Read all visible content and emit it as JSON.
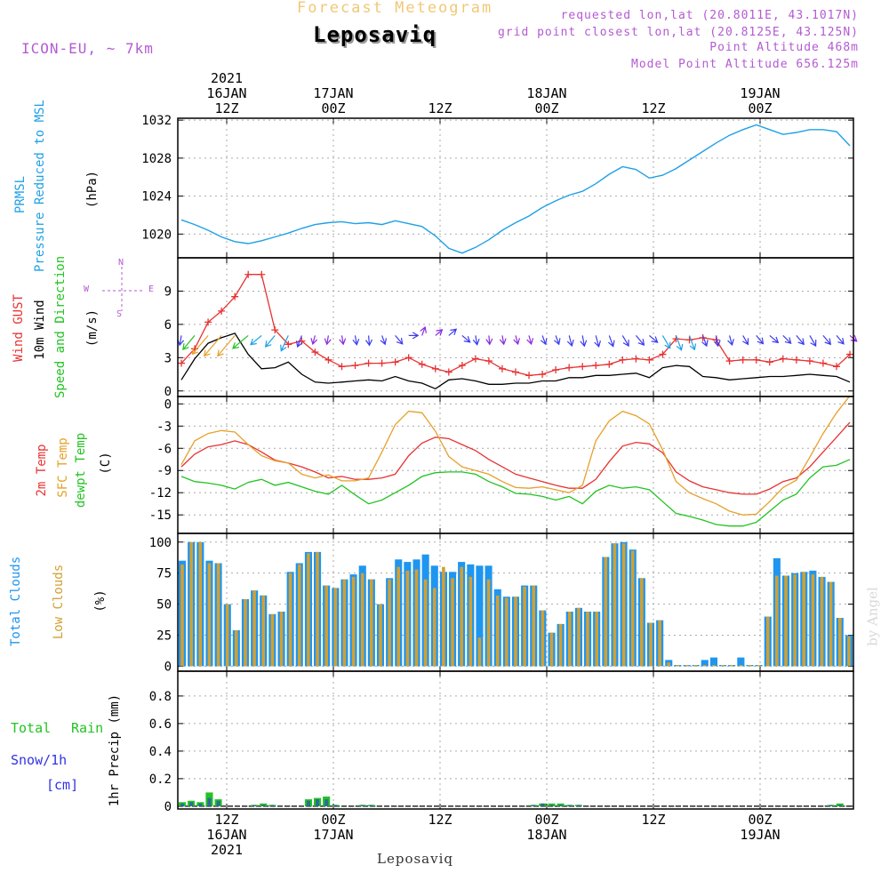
{
  "header": {
    "forecast_title": "Forecast Meteogram",
    "location": "Leposaviq",
    "model": "ICON-EU, ~ 7km",
    "requested": "requested lon,lat (20.8011E, 43.1017N)",
    "grid_point": "grid point closest lon,lat (20.8125E, 43.125N)",
    "point_altitude": "Point Altitude 468m",
    "model_altitude": "Model Point Altitude 656.125m",
    "credit": "by Angel",
    "footer_location": "Leposaviq"
  },
  "colors": {
    "pressure": "#1ea0e6",
    "gust": "#e83232",
    "wind": "#000000",
    "wind_green": "#22c322",
    "t2m": "#e83232",
    "tsfc": "#e6a02a",
    "dewpt": "#22c322",
    "total_cloud": "#1e96f0",
    "low_cloud": "#d2a032",
    "rain": "#22c322",
    "snow": "#3232e6",
    "header_violet": "#b45ad2",
    "title_tan": "#f0c878"
  },
  "chart_data": {
    "type": "meteogram",
    "time_axis": {
      "start": "2021-01-16 05Z",
      "step_hours": 1,
      "top_labels": [
        {
          "hour": 7,
          "lines": [
            "2021",
            "16JAN",
            "12Z"
          ]
        },
        {
          "hour": 19,
          "lines": [
            "17JAN",
            "00Z"
          ]
        },
        {
          "hour": 31,
          "lines": [
            "12Z"
          ]
        },
        {
          "hour": 43,
          "lines": [
            "18JAN",
            "00Z"
          ]
        },
        {
          "hour": 55,
          "lines": [
            "12Z"
          ]
        },
        {
          "hour": 67,
          "lines": [
            "19JAN",
            "00Z"
          ]
        }
      ],
      "bottom_labels": [
        {
          "hour": 7,
          "lines": [
            "12Z",
            "16JAN",
            "2021"
          ]
        },
        {
          "hour": 19,
          "lines": [
            "00Z",
            "17JAN"
          ]
        },
        {
          "hour": 31,
          "lines": [
            "12Z"
          ]
        },
        {
          "hour": 43,
          "lines": [
            "00Z",
            "18JAN"
          ]
        },
        {
          "hour": 55,
          "lines": [
            "12Z"
          ]
        },
        {
          "hour": 67,
          "lines": [
            "00Z",
            "19JAN"
          ]
        }
      ]
    },
    "panels": {
      "pressure": {
        "labels": [
          "PRMSL",
          "Pressure Reduced to MSL",
          "(hPa)"
        ],
        "ylim": [
          1017.5,
          1032.2
        ],
        "yticks": [
          1020,
          1024,
          1028,
          1032
        ],
        "series": [
          {
            "name": "PRMSL",
            "values": [
              1021.5,
              1021.0,
              1020.4,
              1019.7,
              1019.2,
              1019.0,
              1019.3,
              1019.7,
              1020.1,
              1020.6,
              1021.0,
              1021.2,
              1021.3,
              1021.1,
              1021.2,
              1021.0,
              1021.4,
              1021.1,
              1020.8,
              1019.8,
              1018.5,
              1018.0,
              1018.6,
              1019.4,
              1020.4,
              1021.2,
              1021.9,
              1022.8,
              1023.5,
              1024.1,
              1024.5,
              1025.3,
              1026.3,
              1027.1,
              1026.8,
              1025.9,
              1026.2,
              1026.9,
              1027.8,
              1028.7,
              1029.6,
              1030.4,
              1031.0,
              1031.5,
              1031.0,
              1030.5,
              1030.7,
              1031.0,
              1031.0,
              1030.8,
              1029.3
            ]
          }
        ]
      },
      "wind": {
        "labels": [
          "Wind GUST",
          "10m Wind",
          "Speed and Direction",
          "(m/s)"
        ],
        "ylim": [
          -0.5,
          12.0
        ],
        "yticks": [
          0,
          3,
          6,
          9
        ],
        "compass": {
          "n": "N",
          "s": "S",
          "w": "W",
          "e": "E"
        },
        "gust": [
          2.5,
          3.8,
          6.2,
          7.2,
          8.5,
          10.5,
          10.5,
          5.5,
          4.2,
          4.5,
          3.5,
          2.8,
          2.2,
          2.3,
          2.5,
          2.5,
          2.6,
          3.0,
          2.4,
          2.0,
          1.7,
          2.3,
          2.9,
          2.7,
          2.0,
          1.7,
          1.4,
          1.5,
          1.9,
          2.1,
          2.2,
          2.3,
          2.4,
          2.8,
          2.9,
          2.8,
          3.3,
          4.7,
          4.6,
          4.8,
          4.6,
          2.7,
          2.8,
          2.8,
          2.6,
          2.9,
          2.8,
          2.7,
          2.5,
          2.2,
          3.3
        ],
        "speed": [
          1.0,
          2.9,
          4.3,
          4.8,
          5.2,
          3.3,
          2.0,
          2.1,
          2.6,
          1.5,
          0.8,
          0.7,
          0.8,
          0.9,
          1.0,
          0.9,
          1.3,
          0.9,
          0.7,
          0.2,
          1.0,
          1.1,
          0.9,
          0.6,
          0.6,
          0.7,
          0.7,
          0.9,
          0.9,
          1.2,
          1.2,
          1.4,
          1.4,
          1.5,
          1.6,
          1.2,
          2.1,
          2.3,
          2.2,
          1.3,
          1.2,
          1.0,
          1.1,
          1.2,
          1.3,
          1.3,
          1.4,
          1.5,
          1.4,
          1.3,
          0.8
        ],
        "barb_dirs_deg": [
          10,
          40,
          40,
          40,
          40,
          50,
          50,
          40,
          25,
          20,
          15,
          10,
          350,
          350,
          355,
          340,
          320,
          270,
          200,
          230,
          230,
          310,
          350,
          355,
          350,
          345,
          345,
          340,
          340,
          345,
          350,
          345,
          340,
          330,
          320,
          310,
          330,
          340,
          340,
          340,
          350,
          345,
          330,
          320,
          310,
          315,
          320,
          330,
          320,
          320,
          310
        ]
      },
      "temperature": {
        "labels": [
          "2m Temp",
          "SFC Temp",
          "dewpt Temp",
          "(C)"
        ],
        "ylim": [
          -17.5,
          1.0
        ],
        "yticks": [
          0,
          -3,
          -6,
          -9,
          -12,
          -15
        ],
        "series": [
          {
            "name": "2m Temp",
            "values": [
              -8.5,
              -6.8,
              -5.8,
              -5.5,
              -5.0,
              -5.5,
              -6.5,
              -7.6,
              -8.0,
              -8.5,
              -9.2,
              -10.0,
              -9.8,
              -10.2,
              -10.2,
              -10.0,
              -9.5,
              -7.0,
              -5.3,
              -4.5,
              -4.7,
              -5.5,
              -6.3,
              -7.5,
              -8.5,
              -9.5,
              -10.0,
              -10.5,
              -11.0,
              -11.4,
              -11.4,
              -10.2,
              -7.8,
              -5.7,
              -5.2,
              -5.4,
              -6.6,
              -9.2,
              -10.4,
              -11.2,
              -11.6,
              -12.0,
              -12.2,
              -12.2,
              -11.5,
              -10.5,
              -10.0,
              -8.5,
              -6.5,
              -4.5,
              -2.5
            ]
          },
          {
            "name": "SFC Temp",
            "values": [
              -8.2,
              -5.0,
              -4.0,
              -3.6,
              -3.8,
              -5.5,
              -7.0,
              -7.7,
              -8.0,
              -9.5,
              -10.0,
              -9.6,
              -10.4,
              -10.4,
              -10.0,
              -6.5,
              -2.8,
              -1.0,
              -1.2,
              -3.7,
              -7.1,
              -8.5,
              -9.0,
              -9.5,
              -10.5,
              -11.3,
              -11.4,
              -11.2,
              -11.6,
              -12.0,
              -11.0,
              -5.0,
              -2.3,
              -1.0,
              -1.6,
              -2.7,
              -6.2,
              -10.5,
              -12.0,
              -12.8,
              -13.5,
              -14.5,
              -15.0,
              -14.9,
              -13.2,
              -11.3,
              -10.3,
              -7.2,
              -4.0,
              -1.2,
              1.1
            ]
          },
          {
            "name": "dewpt Temp",
            "values": [
              -9.8,
              -10.5,
              -10.7,
              -11.0,
              -11.5,
              -10.6,
              -10.2,
              -11.0,
              -10.6,
              -11.2,
              -11.8,
              -12.2,
              -11.0,
              -12.3,
              -13.5,
              -13.0,
              -12.0,
              -11.0,
              -9.8,
              -9.3,
              -9.2,
              -9.2,
              -9.5,
              -10.5,
              -11.2,
              -12.1,
              -12.2,
              -12.5,
              -13.0,
              -12.5,
              -13.5,
              -11.8,
              -11.0,
              -11.4,
              -11.2,
              -11.6,
              -13.2,
              -14.8,
              -15.2,
              -15.7,
              -16.3,
              -16.5,
              -16.5,
              -16.0,
              -14.5,
              -13.0,
              -12.2,
              -10.0,
              -8.5,
              -8.3,
              -7.5
            ]
          }
        ]
      },
      "clouds": {
        "labels": [
          "Total Clouds",
          "Low Clouds",
          "(%)"
        ],
        "ylim": [
          -4,
          107
        ],
        "yticks": [
          0,
          25,
          50,
          75,
          100
        ],
        "total": [
          85,
          100,
          100,
          85,
          83,
          50,
          29,
          54,
          61,
          57,
          42,
          44,
          76,
          83,
          92,
          92,
          65,
          63,
          70,
          74,
          81,
          70,
          50,
          71,
          86,
          84,
          86,
          90,
          81,
          76,
          76,
          84,
          82,
          81,
          81,
          62,
          56,
          56,
          65,
          65,
          45,
          27,
          34,
          44,
          47,
          44,
          44,
          88,
          99,
          100,
          94,
          71,
          35,
          37,
          5,
          1,
          1,
          1,
          5,
          7,
          1,
          1,
          7,
          1,
          1,
          40,
          87,
          73,
          75,
          76,
          77,
          72,
          68,
          39,
          25
        ],
        "low": [
          82,
          100,
          100,
          83,
          83,
          50,
          29,
          54,
          61,
          57,
          42,
          44,
          75,
          82,
          91,
          92,
          65,
          63,
          70,
          72,
          75,
          70,
          50,
          70,
          80,
          77,
          78,
          70,
          63,
          80,
          71,
          80,
          72,
          23,
          70,
          57,
          55,
          56,
          64,
          65,
          45,
          27,
          34,
          44,
          47,
          44,
          44,
          88,
          99,
          99,
          93,
          71,
          35,
          37,
          3,
          1,
          1,
          1,
          1,
          1,
          1,
          1,
          1,
          1,
          1,
          40,
          73,
          73,
          74,
          76,
          74,
          72,
          68,
          39,
          24
        ]
      },
      "precip": {
        "labels": [
          "Total",
          "Rain",
          "Snow/1h",
          "[cm]",
          "1hr Precip (mm)"
        ],
        "ylim": [
          -0.02,
          0.98
        ],
        "yticks": [
          0,
          0.2,
          0.4,
          0.6,
          0.8
        ],
        "rain": [
          0.03,
          0.04,
          0.03,
          0.1,
          0.05,
          0,
          0,
          0,
          0.01,
          0.02,
          0.01,
          0,
          0,
          0,
          0.05,
          0.06,
          0.07,
          0.01,
          0,
          0,
          0.01,
          0.01,
          0,
          0,
          0,
          0,
          0,
          0,
          0,
          0,
          0,
          0,
          0,
          0,
          0,
          0,
          0,
          0,
          0,
          0.01,
          0.02,
          0.02,
          0.02,
          0.01,
          0.01,
          0,
          0,
          0,
          0,
          0,
          0,
          0,
          0,
          0,
          0,
          0,
          0,
          0,
          0,
          0,
          0,
          0,
          0,
          0,
          0,
          0,
          0,
          0,
          0,
          0,
          0,
          0,
          0.01,
          0.02,
          0
        ],
        "snow": [
          0.02,
          0.03,
          0.02,
          0.06,
          0.04,
          0,
          0,
          0,
          0.01,
          0.01,
          0.01,
          0,
          0,
          0,
          0.04,
          0.05,
          0.05,
          0.01,
          0,
          0,
          0.01,
          0.01,
          0,
          0,
          0,
          0,
          0,
          0,
          0,
          0,
          0,
          0,
          0,
          0,
          0,
          0,
          0,
          0,
          0,
          0.01,
          0.02,
          0.01,
          0.01,
          0.01,
          0.01,
          0,
          0,
          0,
          0,
          0,
          0,
          0,
          0,
          0,
          0,
          0,
          0,
          0,
          0,
          0,
          0,
          0,
          0,
          0,
          0,
          0,
          0,
          0,
          0,
          0,
          0,
          0,
          0.01,
          0.01,
          0
        ]
      }
    }
  }
}
